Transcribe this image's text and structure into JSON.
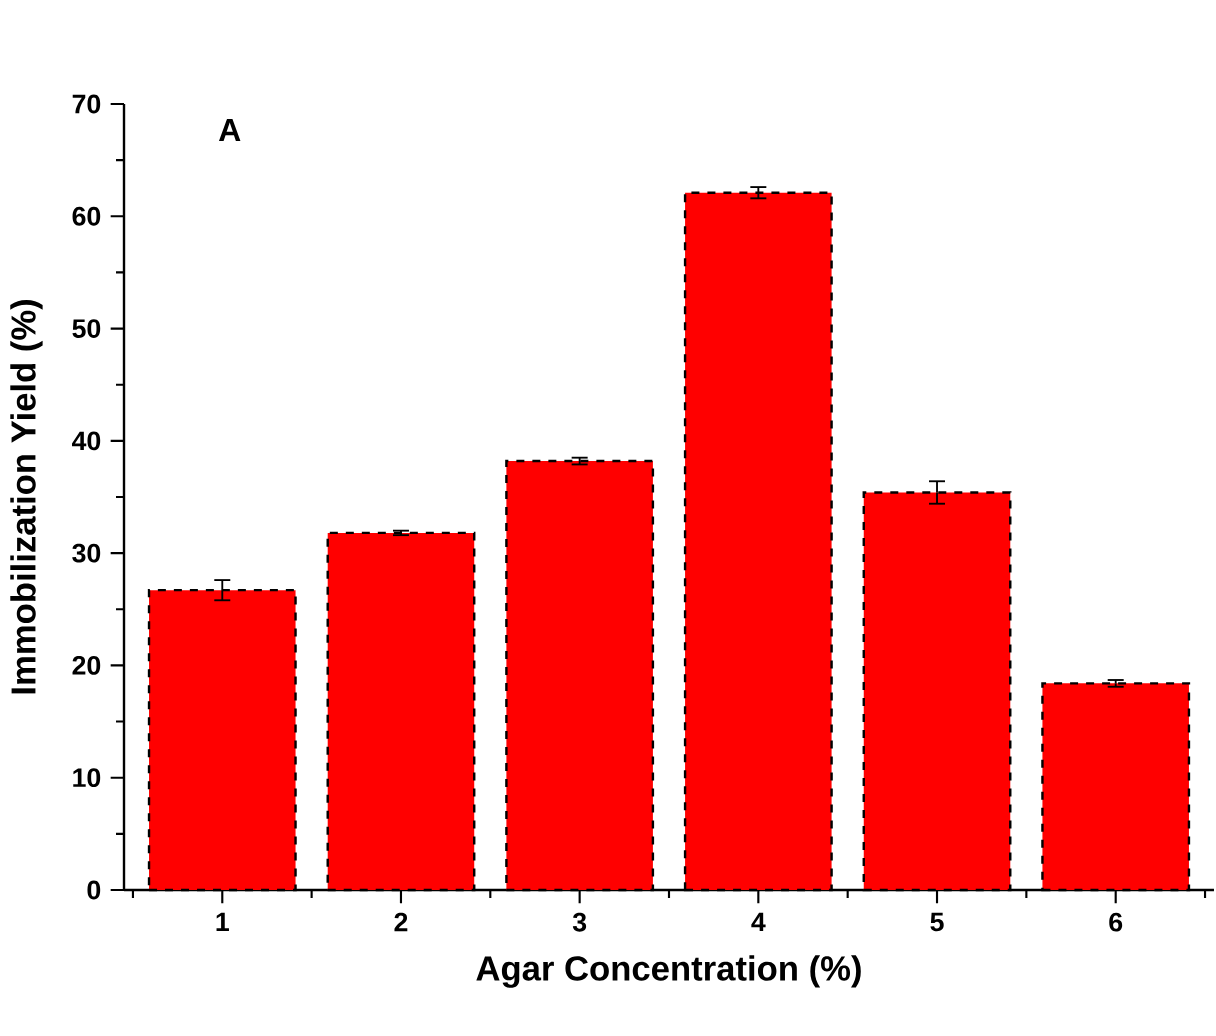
{
  "chart_data": {
    "type": "bar",
    "categories": [
      "1",
      "2",
      "3",
      "4",
      "5",
      "6"
    ],
    "values": [
      26.7,
      31.8,
      38.2,
      62.1,
      35.4,
      18.4
    ],
    "errors": [
      0.9,
      0.2,
      0.3,
      0.5,
      1.0,
      0.3
    ],
    "color": "#ff0000",
    "xlabel": "Agar Concentration (%)",
    "ylabel": "Immobilization Yield (%)",
    "ylim": [
      0,
      70
    ],
    "yticks": [
      0,
      10,
      20,
      30,
      40,
      50,
      60,
      70
    ],
    "annotations": [
      "A"
    ]
  }
}
